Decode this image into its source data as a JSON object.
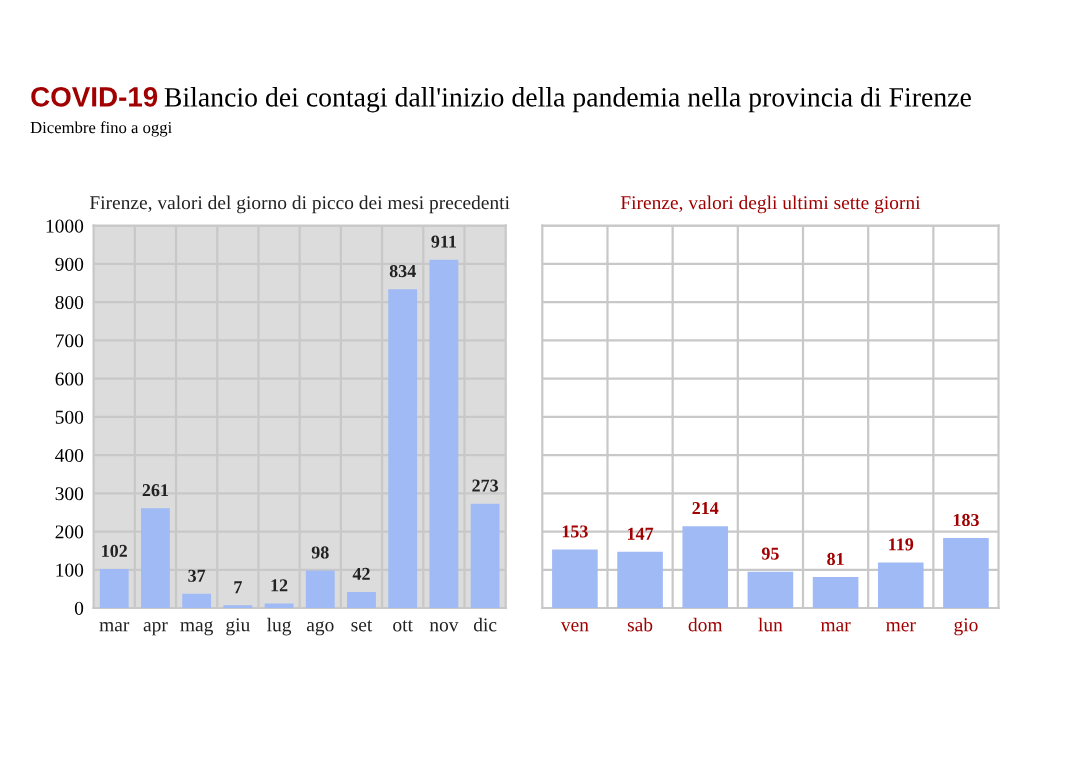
{
  "chart_data": [
    {
      "type": "other",
      "title": "COVID-19 Bilancio dei contagi dall'inizio della pandemia nella provincia di Firenze",
      "subtitle": "Dicembre fino a oggi"
    },
    {
      "type": "bar",
      "title": "Firenze, valori del giorno di picco dei mesi precedenti",
      "categories": [
        "mar",
        "apr",
        "mag",
        "giu",
        "lug",
        "ago",
        "set",
        "ott",
        "nov",
        "dic"
      ],
      "values": [
        102,
        261,
        37,
        7,
        12,
        98,
        42,
        834,
        911,
        273
      ],
      "color": "#9fbaf5",
      "ylim": [
        0,
        1000
      ],
      "yticks": [
        0,
        100,
        200,
        300,
        400,
        500,
        600,
        700,
        800,
        900,
        1000
      ],
      "grid": true,
      "data_labels": true
    },
    {
      "type": "bar",
      "title": "Firenze, valori degli ultimi sette giorni",
      "categories": [
        "ven",
        "sab",
        "dom",
        "lun",
        "mar",
        "mer",
        "gio"
      ],
      "values": [
        153,
        147,
        214,
        95,
        81,
        119,
        183
      ],
      "color": "#9fbaf5",
      "ylim": [
        0,
        1000
      ],
      "yticks": [
        {
          "value": 0,
          "label": null
        },
        {
          "value": 100,
          "label": null
        },
        {
          "value": 200,
          "label": null
        },
        {
          "value": 300,
          "label": null
        },
        {
          "value": 400,
          "label": null
        },
        {
          "value": 500,
          "label": null
        },
        {
          "value": 600,
          "label": null
        },
        {
          "value": 700,
          "label": null
        },
        {
          "value": 800,
          "label": null
        },
        {
          "value": 900,
          "label": null
        },
        {
          "value": 1000,
          "label": null
        }
      ],
      "grid": true,
      "data_labels": true
    }
  ]
}
